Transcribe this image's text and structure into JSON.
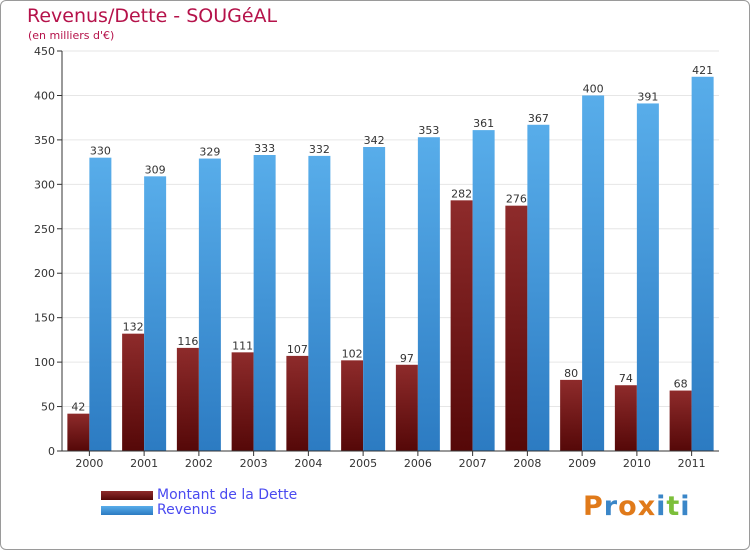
{
  "colors": {
    "debt_top": "#8e2b2b",
    "debt_bottom": "#550808",
    "revenue_top": "#58adea",
    "revenue_bottom": "#2c7bc2",
    "title": "#b5124a",
    "legend_text": "#4a4af0"
  },
  "logo": {
    "letters": [
      "P",
      "r",
      "o",
      "x",
      "i",
      "t",
      "i"
    ],
    "colors": [
      "#e07a1a",
      "#3a86c8",
      "#e07a1a",
      "#e07a1a",
      "#3a86c8",
      "#7cbf3a",
      "#3a86c8"
    ]
  },
  "chart_data": {
    "type": "bar",
    "title": "Revenus/Dette - SOUGéAL",
    "subtitle": "(en milliers d'€)",
    "xlabel": "",
    "ylabel": "",
    "categories": [
      "2000",
      "2001",
      "2002",
      "2003",
      "2004",
      "2005",
      "2006",
      "2007",
      "2008",
      "2009",
      "2010",
      "2011"
    ],
    "series": [
      {
        "name": "Montant de la Dette",
        "values": [
          42,
          132,
          116,
          111,
          107,
          102,
          97,
          282,
          276,
          80,
          74,
          68
        ]
      },
      {
        "name": "Revenus",
        "values": [
          330,
          309,
          329,
          333,
          332,
          342,
          353,
          361,
          367,
          400,
          391,
          421
        ]
      }
    ],
    "ylim": [
      0,
      450
    ],
    "yticks": [
      0,
      50,
      100,
      150,
      200,
      250,
      300,
      350,
      400,
      450
    ],
    "grid": true,
    "legend": "bottom-left"
  }
}
